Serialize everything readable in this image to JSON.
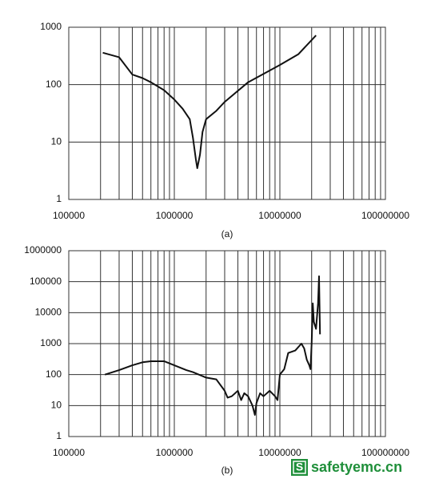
{
  "chart_data": [
    {
      "type": "line",
      "x_scale": "log",
      "y_scale": "log",
      "grid": true,
      "minor_grid": true,
      "caption": "(a)",
      "xlim": [
        100000,
        100000000
      ],
      "xticks": [
        100000,
        1000000,
        10000000,
        100000000
      ],
      "ylim": [
        1,
        1000
      ],
      "yticks": [
        1,
        10,
        100,
        1000
      ],
      "x": [
        210000,
        300000,
        400000,
        500000,
        600000,
        800000,
        1000000,
        1200000,
        1400000,
        1500000,
        1600000,
        1650000,
        1750000,
        1850000,
        2000000,
        2500000,
        3000000,
        5000000,
        10000000,
        15000000,
        22000000
      ],
      "series": [
        {
          "color": "#111111",
          "values": [
            360,
            300,
            150,
            130,
            110,
            80,
            55,
            38,
            25,
            12,
            5,
            3.5,
            6,
            15,
            25,
            35,
            50,
            110,
            220,
            340,
            720
          ]
        }
      ]
    },
    {
      "type": "line",
      "x_scale": "log",
      "y_scale": "log",
      "grid": true,
      "minor_grid": true,
      "caption": "(b)",
      "xlim": [
        100000,
        100000000
      ],
      "xticks": [
        100000,
        1000000,
        10000000,
        100000000
      ],
      "ylim": [
        1,
        1000000
      ],
      "yticks": [
        1,
        10,
        100,
        1000,
        10000,
        100000,
        1000000
      ],
      "x": [
        220000,
        300000,
        400000,
        500000,
        600000,
        800000,
        1000000,
        1300000,
        1500000,
        2000000,
        2500000,
        3000000,
        3200000,
        3500000,
        4000000,
        4300000,
        4600000,
        5000000,
        5500000,
        5800000,
        6000000,
        6500000,
        7000000,
        8000000,
        9000000,
        9500000,
        10000000,
        11000000,
        12000000,
        14000000,
        16000000,
        17000000,
        18000000,
        19000000,
        19500000,
        20000000,
        20500000,
        21000000,
        22000000,
        23000000,
        23500000,
        24000000
      ],
      "series": [
        {
          "color": "#111111",
          "values": [
            100,
            140,
            200,
            250,
            270,
            270,
            200,
            140,
            120,
            80,
            70,
            30,
            18,
            20,
            30,
            15,
            25,
            20,
            10,
            5,
            12,
            25,
            20,
            30,
            20,
            15,
            100,
            150,
            500,
            600,
            1000,
            700,
            300,
            200,
            150,
            1000,
            20000,
            5000,
            3000,
            20000,
            150000,
            2000
          ]
        }
      ]
    }
  ],
  "watermark": {
    "icon": "S",
    "text": "safetyemc.cn"
  }
}
